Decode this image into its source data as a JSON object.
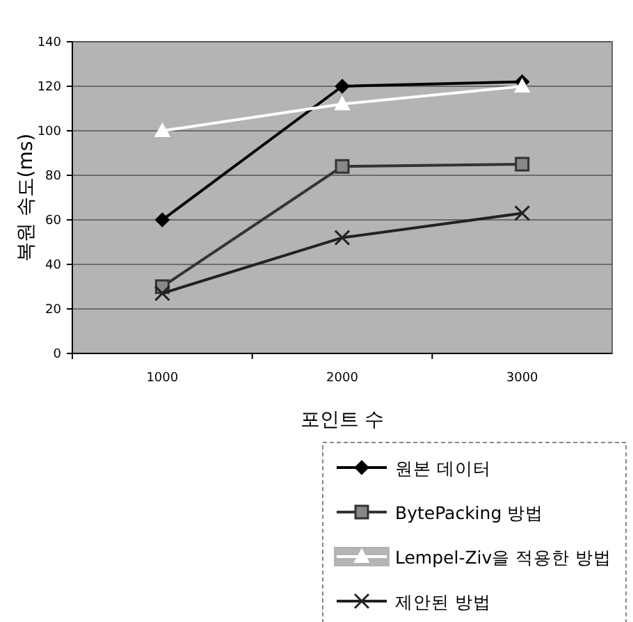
{
  "chart_data": {
    "type": "line",
    "xlabel": "포인트 수",
    "ylabel": "복원 속도(ms)",
    "categories": [
      "1000",
      "2000",
      "3000"
    ],
    "ylim": [
      0,
      140
    ],
    "yticks": [
      0,
      20,
      40,
      60,
      80,
      100,
      120,
      140
    ],
    "grid": "y",
    "legend": "bottom",
    "series": [
      {
        "name": "원본 데이터",
        "color": "#000000",
        "marker": "diamond",
        "values": [
          60,
          120,
          122
        ]
      },
      {
        "name": "BytePacking 방법",
        "color": "#333333",
        "marker": "square",
        "values": [
          30,
          84,
          85
        ]
      },
      {
        "name": "Lempel-Ziv을 적용한 방법",
        "color": "#ffffff",
        "marker": "triangle",
        "values": [
          100,
          112,
          120
        ]
      },
      {
        "name": "제안된 방법",
        "color": "#222222",
        "marker": "cross",
        "values": [
          27,
          52,
          63
        ]
      }
    ]
  }
}
